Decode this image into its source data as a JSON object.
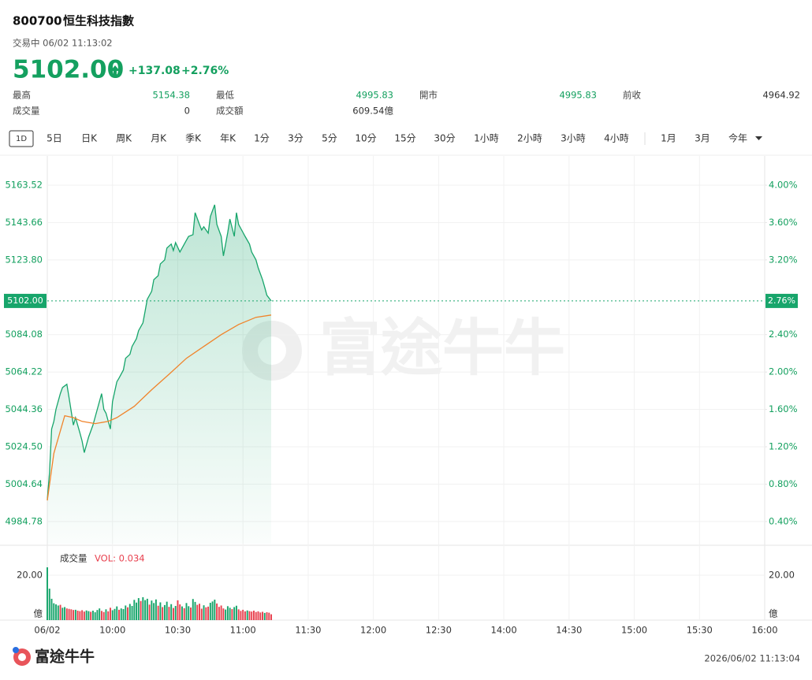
{
  "header": {
    "code": "800700",
    "name": "恒生科技指數",
    "status": "交易中 06/02 11:13:02"
  },
  "quote": {
    "price": "5102.00",
    "change": "+137.08",
    "change_pct": "+2.76%"
  },
  "stats": [
    {
      "label": "最高",
      "value": 5154.38
    },
    {
      "label": "最低",
      "value": 4995.83
    },
    {
      "label": "開市",
      "value": 4995.83
    },
    {
      "label": "前收",
      "value": 4964.92
    },
    {
      "label": "成交量",
      "value": 0
    },
    {
      "label": "成交額",
      "value": "609.54億"
    }
  ],
  "tabs": [
    "1D",
    "5日",
    "日K",
    "周K",
    "月K",
    "季K",
    "年K",
    "1分",
    "3分",
    "5分",
    "10分",
    "15分",
    "30分",
    "1小時",
    "2小時",
    "3小時",
    "4小時",
    "1月",
    "3月",
    "今年"
  ],
  "watermark": "富途牛牛",
  "footer": {
    "logo": "富途牛牛",
    "timestamp": "2026/06/02 11:13:04"
  },
  "chart_data": [
    {
      "type": "line",
      "xlim": [
        0,
        330
      ],
      "xticks": [
        {
          "value": 0,
          "label": "06/02"
        },
        {
          "value": 30,
          "label": "10:00"
        },
        {
          "value": 60,
          "label": "10:30"
        },
        {
          "value": 90,
          "label": "11:00"
        },
        {
          "value": 120,
          "label": "11:30"
        },
        {
          "value": 150,
          "label": "12:00"
        },
        {
          "value": 180,
          "label": "12:30"
        },
        {
          "value": 210,
          "label": "14:00"
        },
        {
          "value": 240,
          "label": "14:30"
        },
        {
          "value": 270,
          "label": "15:00"
        },
        {
          "value": 300,
          "label": "15:30"
        },
        {
          "value": 330,
          "label": "16:00"
        }
      ],
      "ylim": [
        4973,
        5179
      ],
      "yticks": [
        5163.52,
        5143.66,
        {
          "value": 5123.8,
          "label": "5123.80"
        },
        5084.08,
        5064.22,
        5044.36,
        {
          "value": 5024.5,
          "label": "5024.50"
        },
        5004.64,
        4984.78
      ],
      "y2lim": [
        0.163,
        4.312
      ],
      "y2ticks": [
        {
          "value": 4,
          "label": "4.00%"
        },
        {
          "value": 3.6,
          "label": "3.60%"
        },
        {
          "value": 3.2,
          "label": "3.20%"
        },
        {
          "value": 2.4,
          "label": "2.40%"
        },
        {
          "value": 2,
          "label": "2.00%"
        },
        {
          "value": 1.6,
          "label": "1.60%"
        },
        {
          "value": 1.2,
          "label": "1.20%"
        },
        {
          "value": 0.8,
          "label": "0.80%"
        },
        {
          "value": 0.4,
          "label": "0.40%"
        }
      ],
      "current_pct_label": "2.76%",
      "grid": true,
      "series": [
        {
          "color": "#17a56b",
          "fill": true,
          "x": [
            0,
            1,
            2,
            3,
            4,
            6,
            7,
            9,
            10,
            12,
            13,
            15,
            16,
            17,
            19,
            21,
            23,
            25,
            26,
            27,
            29,
            30,
            32,
            33,
            35,
            36,
            38,
            39,
            41,
            42,
            44,
            45,
            46,
            48,
            49,
            51,
            52,
            54,
            55,
            57,
            58,
            59,
            61,
            62,
            64,
            65,
            67,
            68,
            70,
            71,
            72,
            74,
            75,
            77,
            78,
            80,
            81,
            83,
            84,
            86,
            87,
            88,
            90,
            91,
            93,
            94,
            96,
            97,
            99,
            100,
            101,
            103
          ],
          "values": [
            4996.3,
            5010.9,
            5033.9,
            5038.0,
            5044.4,
            5052.7,
            5056.0,
            5057.7,
            5050.6,
            5036.0,
            5040.0,
            5031.8,
            5027.6,
            5021.4,
            5029.7,
            5036.0,
            5044.4,
            5052.7,
            5044.4,
            5042.3,
            5033.9,
            5048.5,
            5059.0,
            5061.0,
            5065.3,
            5071.5,
            5073.6,
            5077.8,
            5082.0,
            5086.2,
            5090.3,
            5096.6,
            5102.9,
            5107.1,
            5113.3,
            5115.4,
            5121.7,
            5123.8,
            5130.1,
            5132.2,
            5128.8,
            5133.0,
            5128.0,
            5130.1,
            5134.3,
            5136.3,
            5137.2,
            5148.9,
            5142.6,
            5139.7,
            5141.4,
            5138.0,
            5146.8,
            5153.1,
            5142.6,
            5136.3,
            5125.9,
            5138.4,
            5145.5,
            5136.3,
            5148.9,
            5142.6,
            5138.4,
            5136.3,
            5132.2,
            5128.0,
            5123.8,
            5119.6,
            5113.3,
            5109.2,
            5105.0,
            5102
          ]
        },
        {
          "color": "#f0832a",
          "x": [
            0,
            3,
            8,
            12,
            16,
            22,
            28,
            32,
            40,
            48,
            56,
            64,
            72,
            80,
            88,
            96,
            103
          ],
          "values": [
            4996,
            5021,
            5041,
            5040,
            5038,
            5036.8,
            5038,
            5040,
            5046,
            5054.8,
            5063,
            5071.5,
            5077.8,
            5084.1,
            5089.5,
            5093.3,
            5094.5
          ]
        }
      ]
    },
    {
      "type": "bar",
      "title": "成交量",
      "subtitle": "VOL: 0.034",
      "y_unit": "億",
      "ylim": [
        0,
        30.5
      ],
      "yticks": [
        {
          "value": 20,
          "label": "20.00"
        }
      ],
      "series": [
        {
          "color": "#17a56b",
          "x": [
            0,
            1,
            2,
            3,
            4,
            5,
            7,
            8,
            13,
            18,
            19,
            21,
            22,
            23,
            24,
            27,
            30,
            31,
            32,
            34,
            35,
            36,
            38,
            39,
            40,
            41,
            42,
            44,
            45,
            46,
            48,
            49,
            50,
            52,
            54,
            55,
            57,
            59,
            62,
            64,
            65,
            67,
            68,
            72,
            75,
            76,
            77,
            82,
            83,
            84,
            86,
            87,
            92,
            100
          ],
          "values": [
            23.5,
            14.0,
            9.5,
            7.5,
            7.0,
            6.5,
            5.5,
            5.8,
            4.6,
            4.3,
            4.0,
            4.2,
            3.5,
            4.5,
            5.2,
            4.8,
            4.4,
            5.0,
            6.1,
            5.2,
            4.9,
            6.5,
            7.2,
            6.3,
            9.0,
            7.8,
            9.8,
            10.2,
            8.9,
            9.5,
            8.7,
            7.6,
            9.2,
            7.9,
            6.7,
            8.2,
            7.1,
            6.3,
            6.1,
            7.6,
            6.2,
            9.4,
            8.1,
            6.6,
            7.7,
            8.3,
            9.1,
            4.7,
            6.2,
            5.5,
            5.8,
            6.4,
            4.3,
            3.2
          ]
        },
        {
          "color": "#e8414f",
          "x": [
            6,
            9,
            10,
            11,
            12,
            14,
            15,
            16,
            17,
            20,
            25,
            26,
            28,
            29,
            33,
            37,
            43,
            47,
            51,
            53,
            56,
            58,
            60,
            61,
            63,
            66,
            69,
            70,
            71,
            73,
            74,
            78,
            79,
            80,
            81,
            85,
            88,
            89,
            90,
            91,
            93,
            94,
            95,
            96,
            97,
            98,
            99,
            101,
            102,
            103
          ],
          "values": [
            6.8,
            5.2,
            5.0,
            4.8,
            4.5,
            4.2,
            4.0,
            4.4,
            3.8,
            3.7,
            4.1,
            3.6,
            3.9,
            5.5,
            4.6,
            5.7,
            8.5,
            6.9,
            6.4,
            5.8,
            5.9,
            5.4,
            8.8,
            7.0,
            5.3,
            5.6,
            6.8,
            7.3,
            5.1,
            5.7,
            6.0,
            7.4,
            5.9,
            6.5,
            5.2,
            4.9,
            4.8,
            4.1,
            4.6,
            3.9,
            4.0,
            3.8,
            4.2,
            3.6,
            3.9,
            3.4,
            3.7,
            3.5,
            3.3,
            2.6
          ]
        }
      ]
    }
  ]
}
